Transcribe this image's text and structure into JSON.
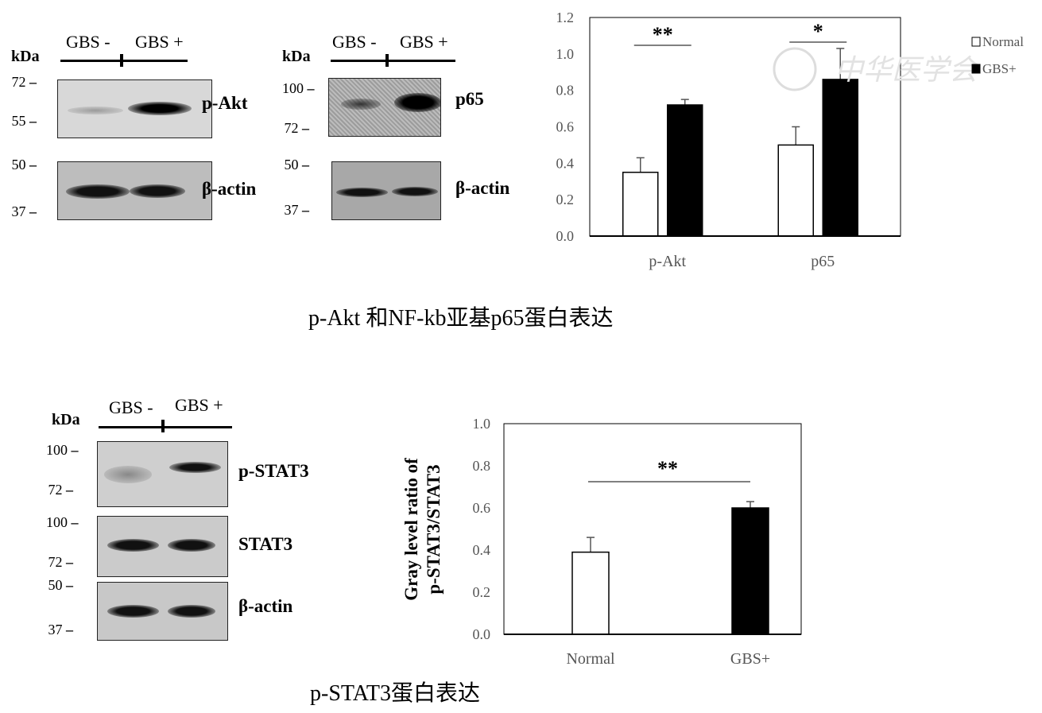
{
  "panel_top": {
    "blot_akt": {
      "kda": "kDa",
      "lanes": [
        "GBS -",
        "GBS +"
      ],
      "markers": [
        "72",
        "55",
        "50",
        "37"
      ],
      "targets": [
        "p-Akt",
        "β-actin"
      ]
    },
    "blot_p65": {
      "kda": "kDa",
      "lanes": [
        "GBS -",
        "GBS +"
      ],
      "markers": [
        "100",
        "72",
        "50",
        "37"
      ],
      "targets": [
        "p65",
        "β-actin"
      ]
    },
    "caption": "p-Akt 和NF-kb亚基p65蛋白表达"
  },
  "panel_bottom": {
    "blot_stat3": {
      "kda": "kDa",
      "lanes": [
        "GBS -",
        "GBS +"
      ],
      "markers": [
        "100",
        "72",
        "100",
        "72",
        "50",
        "37"
      ],
      "targets": [
        "p-STAT3",
        "STAT3",
        "β-actin"
      ]
    },
    "caption": "p-STAT3蛋白表达"
  },
  "watermark": "中华医学会",
  "chart_data": [
    {
      "type": "bar",
      "categories": [
        "p-Akt",
        "p65"
      ],
      "series": [
        {
          "name": "Normal",
          "color": "#ffffff",
          "values": [
            0.35,
            0.5
          ],
          "errors": [
            0.08,
            0.1
          ]
        },
        {
          "name": "GBS+",
          "color": "#000000",
          "values": [
            0.72,
            0.86
          ],
          "errors": [
            0.03,
            0.17
          ]
        }
      ],
      "significance": [
        "**",
        "*"
      ],
      "yticks": [
        "0.0",
        "0.2",
        "0.4",
        "0.6",
        "0.8",
        "1.0",
        "1.2"
      ],
      "ylim": [
        0,
        1.2
      ],
      "ylabel": "",
      "legend": "right"
    },
    {
      "type": "bar",
      "categories": [
        "Normal",
        "GBS+"
      ],
      "values": [
        0.39,
        0.6
      ],
      "errors": [
        0.07,
        0.03
      ],
      "colors": [
        "#ffffff",
        "#000000"
      ],
      "significance": [
        "**"
      ],
      "yticks": [
        "0.0",
        "0.2",
        "0.4",
        "0.6",
        "0.8",
        "1.0"
      ],
      "ylim": [
        0,
        1.0
      ],
      "ylabel": "Gray level ratio of p-STAT3/STAT3",
      "ylabel_lines": [
        "Gray level ratio of",
        "p-STAT3/STAT3"
      ]
    }
  ]
}
